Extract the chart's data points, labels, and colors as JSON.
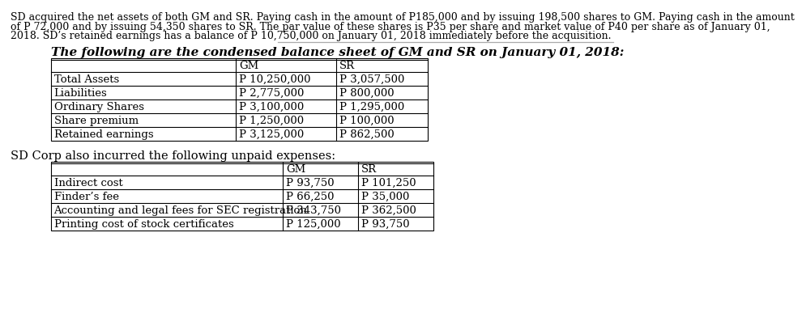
{
  "intro_text_lines": [
    "SD acquired the net assets of both GM and SR. Paying cash in the amount of P185,000 and by issuing 198,500 shares to GM. Paying cash in the amount",
    "of P 72,000 and by issuing 54,350 shares to SR. The par value of these shares is P35 per share and market value of P40 per share as of January 01,",
    "2018. SD’s retained earnings has a balance of P 10,750,000 on January 01, 2018 immediately before the acquisition."
  ],
  "table1_title": "The following are the condensed balance sheet of GM and SR on January 01, 2018:",
  "table1_rows": [
    [
      "",
      "GM",
      "SR"
    ],
    [
      "Total Assets",
      "P 10,250,000",
      "P 3,057,500"
    ],
    [
      "Liabilities",
      "P 2,775,000",
      "P 800,000"
    ],
    [
      "Ordinary Shares",
      "P 3,100,000",
      "P 1,295,000"
    ],
    [
      "Share premium",
      "P 1,250,000",
      "P 100,000"
    ],
    [
      "Retained earnings",
      "P 3,125,000",
      "P 862,500"
    ]
  ],
  "table2_title": "SD Corp also incurred the following unpaid expenses:",
  "table2_rows": [
    [
      "",
      "GM",
      "SR"
    ],
    [
      "Indirect cost",
      "P 93,750",
      "P 101,250"
    ],
    [
      "Finder’s fee",
      "P 66,250",
      "P 35,000"
    ],
    [
      "Accounting and legal fees for SEC registration",
      "P 343,750",
      "P 362,500"
    ],
    [
      "Printing cost of stock certificates",
      "P 125,000",
      "P 93,750"
    ]
  ],
  "bg_color": "#ffffff",
  "text_color": "#000000",
  "intro_fontsize": 9.0,
  "title_fontsize": 11.0,
  "table_fontsize": 9.5,
  "t2_title_fontsize": 10.5,
  "divider_color": "#aaaaaa",
  "table_line_color": "#000000"
}
